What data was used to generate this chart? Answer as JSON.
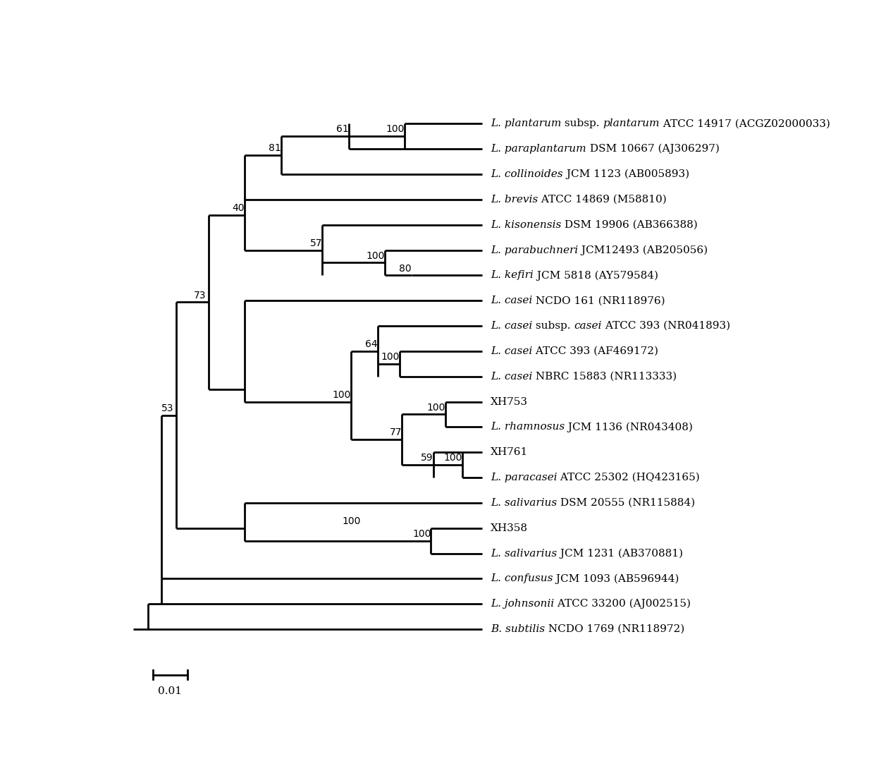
{
  "figsize": [
    12.4,
    11.03
  ],
  "dpi": 100,
  "leaf_y": {
    "plantarum": 20,
    "paraplantarum": 19,
    "collinoides": 18,
    "brevis": 17,
    "kisonensis": 16,
    "parabuchneri": 15,
    "kefiri": 14,
    "casei_ncdo": 13,
    "casei_subsp": 12,
    "casei_atcc": 11,
    "casei_nbrc": 10,
    "xh753": 9,
    "rhamnosus": 8,
    "xh761": 7,
    "paracasei": 6,
    "salivarius_dsm": 5,
    "xh358": 4,
    "salivarius_jcm": 3,
    "confusus": 2,
    "johnsonii": 1,
    "bsub": 0
  },
  "tip_labels": [
    {
      "key": "plantarum",
      "parts": [
        [
          "L. plantarum",
          true
        ],
        [
          " subsp. ",
          false
        ],
        [
          "plantarum",
          true
        ],
        [
          " ATCC 14917 (ACGZ02000033)",
          false
        ]
      ]
    },
    {
      "key": "paraplantarum",
      "parts": [
        [
          "L. paraplantarum",
          true
        ],
        [
          " DSM 10667 (AJ306297)",
          false
        ]
      ]
    },
    {
      "key": "collinoides",
      "parts": [
        [
          "L. collinoides",
          true
        ],
        [
          " JCM 1123 (AB005893)",
          false
        ]
      ]
    },
    {
      "key": "brevis",
      "parts": [
        [
          "L. brevis",
          true
        ],
        [
          " ATCC 14869 (M58810)",
          false
        ]
      ]
    },
    {
      "key": "kisonensis",
      "parts": [
        [
          "L. kisonensis",
          true
        ],
        [
          " DSM 19906 (AB366388)",
          false
        ]
      ]
    },
    {
      "key": "parabuchneri",
      "parts": [
        [
          "L. parabuchneri",
          true
        ],
        [
          " JCM12493 (AB205056)",
          false
        ]
      ]
    },
    {
      "key": "kefiri",
      "parts": [
        [
          "L. kefiri",
          true
        ],
        [
          " JCM 5818 (AY579584)",
          false
        ]
      ]
    },
    {
      "key": "casei_ncdo",
      "parts": [
        [
          "L. casei",
          true
        ],
        [
          " NCDO 161 (NR118976)",
          false
        ]
      ]
    },
    {
      "key": "casei_subsp",
      "parts": [
        [
          "L. casei",
          true
        ],
        [
          " subsp. ",
          false
        ],
        [
          "casei",
          true
        ],
        [
          " ATCC 393 (NR041893)",
          false
        ]
      ]
    },
    {
      "key": "casei_atcc",
      "parts": [
        [
          "L. casei",
          true
        ],
        [
          " ATCC 393 (AF469172)",
          false
        ]
      ]
    },
    {
      "key": "casei_nbrc",
      "parts": [
        [
          "L. casei",
          true
        ],
        [
          " NBRC 15883 (NR113333)",
          false
        ]
      ]
    },
    {
      "key": "xh753",
      "parts": [
        [
          "XH753",
          false
        ]
      ]
    },
    {
      "key": "rhamnosus",
      "parts": [
        [
          "L. rhamnosus",
          true
        ],
        [
          " JCM 1136 (NR043408)",
          false
        ]
      ]
    },
    {
      "key": "xh761",
      "parts": [
        [
          "XH761",
          false
        ]
      ]
    },
    {
      "key": "paracasei",
      "parts": [
        [
          "L. paracasei",
          true
        ],
        [
          " ATCC 25302 (HQ423165)",
          false
        ]
      ]
    },
    {
      "key": "salivarius_dsm",
      "parts": [
        [
          "L. salivarius",
          true
        ],
        [
          " DSM 20555 (NR115884)",
          false
        ]
      ]
    },
    {
      "key": "xh358",
      "parts": [
        [
          "XH358",
          false
        ]
      ]
    },
    {
      "key": "salivarius_jcm",
      "parts": [
        [
          "L. salivarius",
          true
        ],
        [
          " JCM 1231 (AB370881)",
          false
        ]
      ]
    },
    {
      "key": "confusus",
      "parts": [
        [
          "L. confusus",
          true
        ],
        [
          " JCM 1093 (AB596944)",
          false
        ]
      ]
    },
    {
      "key": "johnsonii",
      "parts": [
        [
          "L. johnsonii",
          true
        ],
        [
          " ATCC 33200 (AJ002515)",
          false
        ]
      ]
    },
    {
      "key": "bsub",
      "parts": [
        [
          "B. subtilis",
          true
        ],
        [
          " NCDO 1769 (NR118972)",
          false
        ]
      ]
    }
  ],
  "scale_bar_label": "0.01",
  "font_size_label": 11,
  "font_size_bootstrap": 10,
  "line_width": 2.0
}
